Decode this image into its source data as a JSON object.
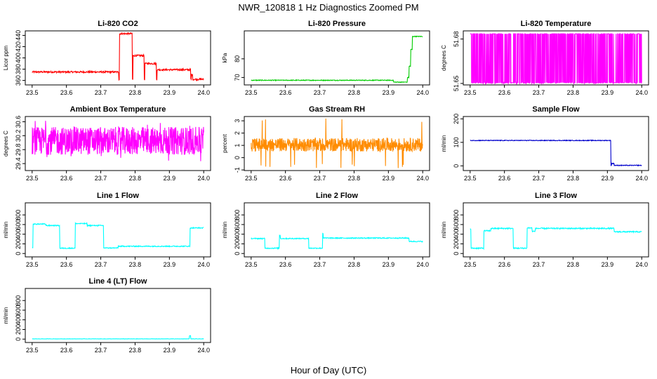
{
  "page": {
    "title": "NWR_120818  1 Hz Diagnostics Zoomed PM",
    "xlabel": "Hour of Day (UTC)"
  },
  "chart_data": [
    {
      "id": "co2",
      "type": "line",
      "title": "Li-820 CO2",
      "ylabel": "Licor ppm",
      "color": "#ff0000",
      "xlim": [
        23.48,
        24.02
      ],
      "xticks": [
        "23.5",
        "23.6",
        "23.7",
        "23.8",
        "23.9",
        "24.0"
      ],
      "ylim": [
        352,
        448
      ],
      "yticks": [
        "360",
        "380",
        "400",
        "420",
        "440"
      ],
      "noise": 1.5,
      "segments": [
        {
          "x0": 23.5,
          "x1": 23.752,
          "y": 375
        },
        {
          "x0": 23.754,
          "x1": 23.792,
          "y": 443
        },
        {
          "x0": 23.794,
          "x1": 23.826,
          "y": 404
        },
        {
          "x0": 23.828,
          "x1": 23.862,
          "y": 390
        },
        {
          "x0": 23.864,
          "x1": 23.962,
          "y": 379
        },
        {
          "x0": 23.964,
          "x1": 23.968,
          "y": 370
        },
        {
          "x0": 23.97,
          "x1": 24.0,
          "y": 362
        }
      ]
    },
    {
      "id": "pressure",
      "type": "line",
      "title": "Li-820 Pressure",
      "ylabel": "kPa",
      "color": "#00cc00",
      "xlim": [
        23.48,
        24.02
      ],
      "xticks": [
        "23.5",
        "23.6",
        "23.7",
        "23.8",
        "23.9",
        "24.0"
      ],
      "ylim": [
        66,
        95
      ],
      "yticks": [
        "70",
        "80"
      ],
      "noise": 0.2,
      "segments": [
        {
          "x0": 23.5,
          "x1": 23.915,
          "y": 68.5
        },
        {
          "x0": 23.915,
          "x1": 23.955,
          "y": 67.5
        },
        {
          "x0": 23.955,
          "x1": 23.96,
          "y": 70
        },
        {
          "x0": 23.96,
          "x1": 23.965,
          "y": 76
        },
        {
          "x0": 23.965,
          "x1": 23.97,
          "y": 85
        },
        {
          "x0": 23.97,
          "x1": 24.0,
          "y": 92
        }
      ]
    },
    {
      "id": "temperature",
      "type": "line",
      "title": "Li-820 Temperature",
      "ylabel": "degrees C",
      "color": "#ff00ff",
      "xlim": [
        23.48,
        24.02
      ],
      "xticks": [
        "23.5",
        "23.6",
        "23.7",
        "23.8",
        "23.9",
        "24.0"
      ],
      "ylim": [
        51.649,
        51.6855
      ],
      "yticks": [
        "51.65",
        "51.68"
      ],
      "toggle": {
        "high": 51.6835,
        "low": 51.6505,
        "drop_low": 51.65
      }
    },
    {
      "id": "ambient",
      "type": "line",
      "title": "Ambient Box Temperature",
      "ylabel": "degrees C",
      "color": "#ff00ff",
      "xlim": [
        23.48,
        24.02
      ],
      "xticks": [
        "23.5",
        "23.6",
        "23.7",
        "23.8",
        "23.9",
        "24.0"
      ],
      "ylim": [
        29.2,
        30.75
      ],
      "yticks": [
        "29.4",
        "29.8",
        "30.2",
        "30.6"
      ],
      "noise_band": {
        "center": 30.05,
        "half": 0.4,
        "spike_low": 29.4,
        "spike_high": 30.65
      }
    },
    {
      "id": "rh",
      "type": "line",
      "title": "Gas Stream RH",
      "ylabel": "percent",
      "color": "#ff8c00",
      "xlim": [
        23.48,
        24.02
      ],
      "xticks": [
        "23.5",
        "23.6",
        "23.7",
        "23.8",
        "23.9",
        "24.0"
      ],
      "ylim": [
        -1.05,
        3.35
      ],
      "yticks": [
        "-1",
        "0",
        "1",
        "2",
        "3"
      ],
      "noise_band": {
        "center": 1.05,
        "half": 0.55,
        "spike_low": -0.95,
        "spike_high": 3.2
      }
    },
    {
      "id": "sample",
      "type": "line",
      "title": "Sample Flow",
      "ylabel": "ml/min",
      "color": "#0000cc",
      "xlim": [
        23.48,
        24.02
      ],
      "xticks": [
        "23.5",
        "23.6",
        "23.7",
        "23.8",
        "23.9",
        "24.0"
      ],
      "ylim": [
        -20,
        210
      ],
      "yticks": [
        "0",
        "100",
        "200"
      ],
      "noise": 1.5,
      "segments": [
        {
          "x0": 23.5,
          "x1": 23.91,
          "y": 108
        },
        {
          "x0": 23.912,
          "x1": 23.92,
          "y": 10
        },
        {
          "x0": 23.92,
          "x1": 24.0,
          "y": 2
        }
      ]
    },
    {
      "id": "line1",
      "type": "line",
      "title": "Line 1 Flow",
      "ylabel": "ml/min",
      "color": "#00ffff",
      "xlim": [
        23.48,
        24.02
      ],
      "xticks": [
        "23.5",
        "23.6",
        "23.7",
        "23.8",
        "23.9",
        "24.0"
      ],
      "ylim": [
        -70,
        1050
      ],
      "yticks": [
        "0",
        "200",
        "400",
        "600",
        "800"
      ],
      "noise": 10,
      "segments": [
        {
          "x0": 23.5,
          "x1": 23.502,
          "y": 120
        },
        {
          "x0": 23.502,
          "x1": 23.54,
          "y": 610
        },
        {
          "x0": 23.54,
          "x1": 23.58,
          "y": 580
        },
        {
          "x0": 23.58,
          "x1": 23.625,
          "y": 110
        },
        {
          "x0": 23.625,
          "x1": 23.66,
          "y": 620
        },
        {
          "x0": 23.66,
          "x1": 23.708,
          "y": 580
        },
        {
          "x0": 23.708,
          "x1": 23.75,
          "y": 115
        },
        {
          "x0": 23.75,
          "x1": 23.96,
          "y": 150
        },
        {
          "x0": 23.96,
          "x1": 24.0,
          "y": 530
        }
      ]
    },
    {
      "id": "line2",
      "type": "line",
      "title": "Line 2 Flow",
      "ylabel": "ml/min",
      "color": "#00ffff",
      "xlim": [
        23.48,
        24.02
      ],
      "xticks": [
        "23.5",
        "23.6",
        "23.7",
        "23.8",
        "23.9",
        "24.0"
      ],
      "ylim": [
        -70,
        1050
      ],
      "yticks": [
        "0",
        "200",
        "400",
        "600",
        "800"
      ],
      "noise": 10,
      "segments": [
        {
          "x0": 23.5,
          "x1": 23.54,
          "y": 310
        },
        {
          "x0": 23.54,
          "x1": 23.582,
          "y": 110
        },
        {
          "x0": 23.582,
          "x1": 23.585,
          "y": 380
        },
        {
          "x0": 23.585,
          "x1": 23.668,
          "y": 310
        },
        {
          "x0": 23.668,
          "x1": 23.708,
          "y": 110
        },
        {
          "x0": 23.708,
          "x1": 23.71,
          "y": 420
        },
        {
          "x0": 23.71,
          "x1": 23.96,
          "y": 320
        },
        {
          "x0": 23.96,
          "x1": 24.0,
          "y": 250
        }
      ]
    },
    {
      "id": "line3",
      "type": "line",
      "title": "Line 3 Flow",
      "ylabel": "ml/min",
      "color": "#00ffff",
      "xlim": [
        23.48,
        24.02
      ],
      "xticks": [
        "23.5",
        "23.6",
        "23.7",
        "23.8",
        "23.9",
        "24.0"
      ],
      "ylim": [
        -70,
        1050
      ],
      "yticks": [
        "0",
        "200",
        "400",
        "600",
        "800"
      ],
      "noise": 12,
      "segments": [
        {
          "x0": 23.5,
          "x1": 23.502,
          "y": 500
        },
        {
          "x0": 23.502,
          "x1": 23.54,
          "y": 110
        },
        {
          "x0": 23.54,
          "x1": 23.56,
          "y": 470
        },
        {
          "x0": 23.56,
          "x1": 23.625,
          "y": 520
        },
        {
          "x0": 23.625,
          "x1": 23.666,
          "y": 110
        },
        {
          "x0": 23.666,
          "x1": 23.68,
          "y": 530
        },
        {
          "x0": 23.68,
          "x1": 23.69,
          "y": 460
        },
        {
          "x0": 23.69,
          "x1": 23.92,
          "y": 520
        },
        {
          "x0": 23.92,
          "x1": 24.0,
          "y": 450
        }
      ]
    },
    {
      "id": "line4",
      "type": "line",
      "title": "Line 4 (LT) Flow",
      "ylabel": "ml/min",
      "color": "#00ffff",
      "xlim": [
        23.48,
        24.02
      ],
      "xticks": [
        "23.5",
        "23.6",
        "23.7",
        "23.8",
        "23.9",
        "24.0"
      ],
      "ylim": [
        -70,
        1050
      ],
      "yticks": [
        "0",
        "200",
        "400",
        "600",
        "800"
      ],
      "noise": 3,
      "segments": [
        {
          "x0": 23.5,
          "x1": 23.958,
          "y": 5
        },
        {
          "x0": 23.958,
          "x1": 23.962,
          "y": 70
        },
        {
          "x0": 23.962,
          "x1": 24.0,
          "y": 5
        }
      ]
    }
  ]
}
